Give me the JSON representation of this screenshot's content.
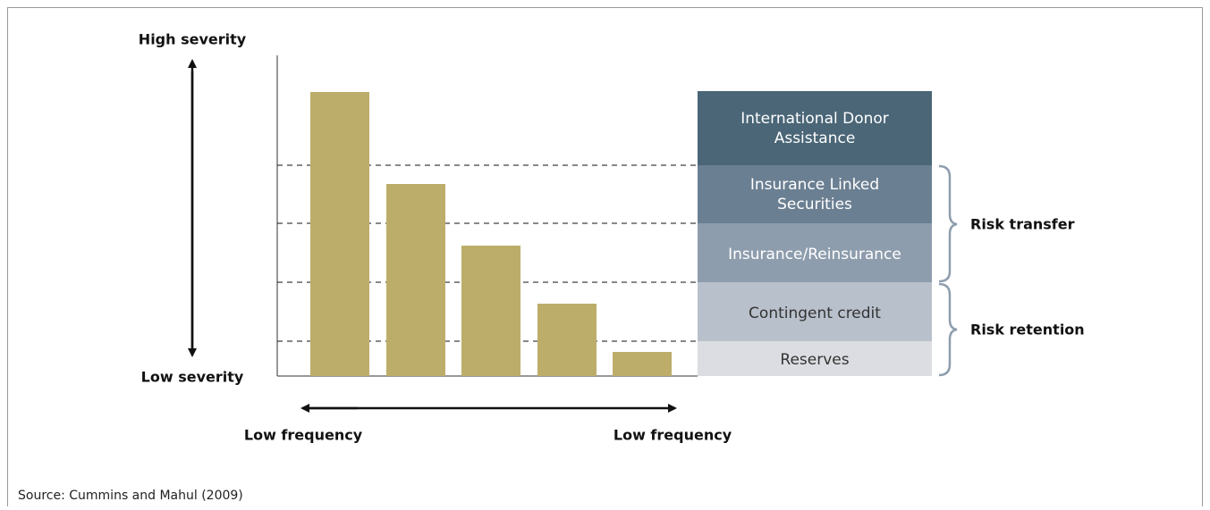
{
  "labels": {
    "high_severity": "High severity",
    "low_severity": "Low severity",
    "frequency_left": "Low frequency",
    "frequency_right": "Low frequency"
  },
  "layers": [
    "International Donor Assistance",
    "Insurance Linked Securities",
    "Insurance/Reinsurance",
    "Contingent credit",
    "Reserves"
  ],
  "groups": [
    "Risk transfer",
    "Risk retention"
  ],
  "source": "Source: Cummins and Mahul (2009)"
}
